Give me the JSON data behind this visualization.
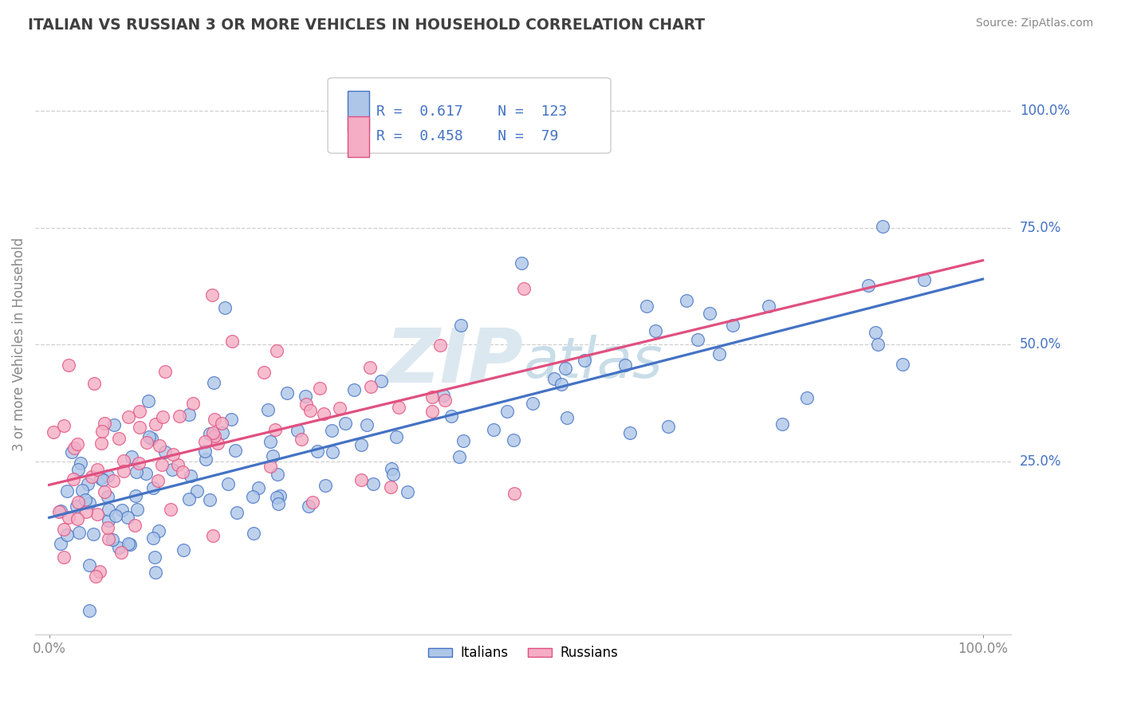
{
  "title": "ITALIAN VS RUSSIAN 3 OR MORE VEHICLES IN HOUSEHOLD CORRELATION CHART",
  "source": "Source: ZipAtlas.com",
  "ylabel": "3 or more Vehicles in Household",
  "xlim": [
    0.0,
    1.0
  ],
  "ylim": [
    -0.12,
    1.12
  ],
  "italian_R": "0.617",
  "italian_N": "123",
  "russian_R": "0.458",
  "russian_N": "79",
  "italian_color": "#aec6e8",
  "russian_color": "#f4adc4",
  "italian_line_color": "#4472c4",
  "russian_line_color": "#e05080",
  "watermark_color": "#dce8f0",
  "grid_color": "#bbbbbb",
  "title_color": "#404040",
  "label_color": "#888888",
  "legend_text_color": "#4472c4",
  "ytick_labels": [
    "25.0%",
    "50.0%",
    "75.0%",
    "100.0%"
  ],
  "ytick_values": [
    0.25,
    0.5,
    0.75,
    1.0
  ],
  "it_line_x0": 0.0,
  "it_line_y0": 0.13,
  "it_line_x1": 1.0,
  "it_line_y1": 0.64,
  "ru_line_x0": 0.0,
  "ru_line_y0": 0.2,
  "ru_line_x1": 1.0,
  "ru_line_y1": 0.68
}
